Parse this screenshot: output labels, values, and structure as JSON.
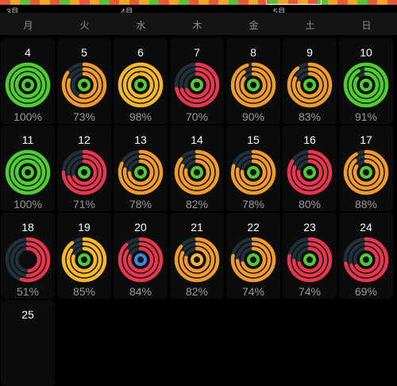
{
  "timeline": {
    "months": [
      "3月",
      "4月",
      "5月"
    ],
    "segments": [
      "#e8593a",
      "#f5a623",
      "#59c23b",
      "#e8593a",
      "#f5a623",
      "#e8593a",
      "#59c23b",
      "#f5a623",
      "#e8593a",
      "#f5a623",
      "#59c23b",
      "#e8593a",
      "#f5a623",
      "#e8593a",
      "#f5a623",
      "#59c23b",
      "#e8593a",
      "#f5a623",
      "#59c23b",
      "#e8593a",
      "#f5a623",
      "#e8593a",
      "#f5a623",
      "#59c23b",
      "#e8593a",
      "#f5a623",
      "#e8593a",
      "#59c23b",
      "#f5a623",
      "#e8593a",
      "#f5a623",
      "#e8593a",
      "#59c23b",
      "#f5a623",
      "#e8593a",
      "#f5a623",
      "#59c23b",
      "#e8593a",
      "#f5a623",
      "#e8593a"
    ]
  },
  "weekdays": [
    "月",
    "火",
    "水",
    "木",
    "金",
    "土",
    "日"
  ],
  "colors": {
    "red": "#e8364f",
    "orange": "#f19a2e",
    "yellow": "#f6b72c",
    "green": "#4fcd30",
    "track": "#22303a",
    "blue": "#2f8ee8"
  },
  "days": [
    {
      "day": "4",
      "percent": "100%",
      "outer": "green",
      "fills": [
        1.0,
        1.0,
        1.0
      ],
      "center": "green"
    },
    {
      "day": "5",
      "percent": "73%",
      "outer": "orange",
      "fills": [
        0.85,
        0.8,
        0.55
      ],
      "center": "green"
    },
    {
      "day": "6",
      "percent": "98%",
      "outer": "yellow",
      "fills": [
        1.0,
        1.0,
        0.95
      ],
      "center": "green"
    },
    {
      "day": "7",
      "percent": "70%",
      "outer": "red",
      "fills": [
        0.72,
        0.7,
        0.68
      ],
      "center": "green"
    },
    {
      "day": "8",
      "percent": "90%",
      "outer": "orange",
      "fills": [
        0.95,
        0.9,
        0.85
      ],
      "center": "green"
    },
    {
      "day": "9",
      "percent": "83%",
      "outer": "orange",
      "fills": [
        0.9,
        0.82,
        0.78
      ],
      "center": "green"
    },
    {
      "day": "10",
      "percent": "91%",
      "outer": "green",
      "fills": [
        1.0,
        0.92,
        0.85
      ],
      "center": "green"
    },
    {
      "day": "11",
      "percent": "100%",
      "outer": "green",
      "fills": [
        1.0,
        1.0,
        1.0
      ],
      "center": "green"
    },
    {
      "day": "12",
      "percent": "71%",
      "outer": "red",
      "fills": [
        0.75,
        0.7,
        0.68
      ],
      "center": "green"
    },
    {
      "day": "13",
      "percent": "78%",
      "outer": "orange",
      "fills": [
        0.82,
        0.78,
        0.74
      ],
      "center": "green"
    },
    {
      "day": "14",
      "percent": "82%",
      "outer": "orange",
      "fills": [
        0.86,
        0.82,
        0.78
      ],
      "center": "green"
    },
    {
      "day": "15",
      "percent": "78%",
      "outer": "orange",
      "fills": [
        0.8,
        0.78,
        0.76
      ],
      "center": "green"
    },
    {
      "day": "16",
      "percent": "80%",
      "outer": "red",
      "fills": [
        0.84,
        0.8,
        0.76
      ],
      "center": "green"
    },
    {
      "day": "17",
      "percent": "88%",
      "outer": "orange",
      "fills": [
        0.92,
        0.88,
        0.84
      ],
      "center": "green"
    },
    {
      "day": "18",
      "percent": "51%",
      "outer": "red",
      "fills": [
        0.55,
        0.5,
        0.48
      ],
      "center": "none"
    },
    {
      "day": "19",
      "percent": "85%",
      "outer": "yellow",
      "fills": [
        0.9,
        0.85,
        0.8
      ],
      "center": "green"
    },
    {
      "day": "20",
      "percent": "84%",
      "outer": "red",
      "fills": [
        0.88,
        0.84,
        0.8
      ],
      "center": "blue"
    },
    {
      "day": "21",
      "percent": "82%",
      "outer": "orange",
      "fills": [
        0.86,
        0.82,
        0.78
      ],
      "center": "yellow"
    },
    {
      "day": "22",
      "percent": "74%",
      "outer": "orange",
      "fills": [
        0.78,
        0.74,
        0.7
      ],
      "center": "green"
    },
    {
      "day": "23",
      "percent": "74%",
      "outer": "red",
      "fills": [
        0.78,
        0.74,
        0.7
      ],
      "center": "green"
    },
    {
      "day": "24",
      "percent": "69%",
      "outer": "red",
      "fills": [
        0.72,
        0.69,
        0.66
      ],
      "center": "green"
    },
    {
      "day": "25",
      "percent": "",
      "outer": "none",
      "fills": [],
      "center": "none"
    }
  ]
}
